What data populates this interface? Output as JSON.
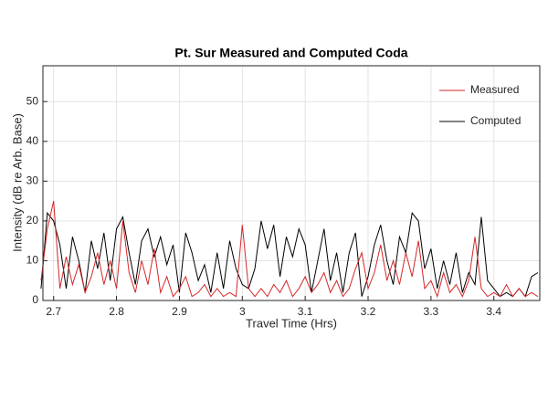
{
  "chart_data": {
    "type": "line",
    "title": "Pt. Sur Measured and Computed Coda",
    "xlabel": "Travel Time (Hrs)",
    "ylabel": "Intensity (dB re Arb. Base)",
    "x": [
      2.68,
      2.69,
      2.7,
      2.71,
      2.72,
      2.73,
      2.74,
      2.75,
      2.76,
      2.77,
      2.78,
      2.79,
      2.8,
      2.81,
      2.82,
      2.83,
      2.84,
      2.85,
      2.86,
      2.87,
      2.88,
      2.89,
      2.9,
      2.91,
      2.92,
      2.93,
      2.94,
      2.95,
      2.96,
      2.97,
      2.98,
      2.99,
      3.0,
      3.01,
      3.02,
      3.03,
      3.04,
      3.05,
      3.06,
      3.07,
      3.08,
      3.09,
      3.1,
      3.11,
      3.12,
      3.13,
      3.14,
      3.15,
      3.16,
      3.17,
      3.18,
      3.19,
      3.2,
      3.21,
      3.22,
      3.23,
      3.24,
      3.25,
      3.26,
      3.27,
      3.28,
      3.29,
      3.3,
      3.31,
      3.32,
      3.33,
      3.34,
      3.35,
      3.36,
      3.37,
      3.38,
      3.39,
      3.4,
      3.41,
      3.42,
      3.43,
      3.44,
      3.45,
      3.46,
      3.47
    ],
    "series": [
      {
        "name": "Measured",
        "color": "#d62728",
        "values": [
          5,
          18,
          25,
          3,
          11,
          4,
          9,
          2,
          6,
          12,
          4,
          10,
          3,
          20,
          7,
          2,
          10,
          4,
          13,
          2,
          6,
          1,
          3,
          6,
          1,
          2,
          4,
          1,
          3,
          1,
          2,
          1,
          19,
          3,
          1,
          3,
          1,
          4,
          2,
          5,
          1,
          3,
          6,
          2,
          4,
          7,
          2,
          5,
          1,
          3,
          8,
          12,
          3,
          7,
          14,
          5,
          10,
          4,
          12,
          6,
          15,
          3,
          5,
          1,
          7,
          2,
          4,
          1,
          5,
          16,
          3,
          1,
          2,
          1,
          4,
          1,
          3,
          1,
          2,
          1
        ]
      },
      {
        "name": "Computed",
        "color": "#000000",
        "values": [
          3,
          22,
          20,
          14,
          3,
          16,
          10,
          2,
          15,
          8,
          17,
          5,
          18,
          21,
          12,
          4,
          15,
          18,
          11,
          16,
          9,
          14,
          2,
          17,
          12,
          5,
          9,
          2,
          12,
          3,
          15,
          8,
          4,
          3,
          8,
          20,
          13,
          19,
          6,
          16,
          11,
          18,
          14,
          2,
          10,
          18,
          5,
          12,
          2,
          12,
          17,
          1,
          6,
          14,
          19,
          10,
          4,
          16,
          12,
          22,
          20,
          8,
          13,
          3,
          10,
          4,
          12,
          2,
          7,
          4,
          21,
          5,
          3,
          1,
          2,
          1,
          3,
          1,
          6,
          7
        ]
      }
    ],
    "xlim": [
      2.683,
      3.473
    ],
    "ylim": [
      0,
      59
    ],
    "xticks": [
      2.7,
      2.8,
      2.9,
      3,
      3.1,
      3.2,
      3.3,
      3.4
    ],
    "yticks": [
      0,
      10,
      20,
      30,
      40,
      50
    ],
    "grid": true,
    "legend": "upper right"
  }
}
